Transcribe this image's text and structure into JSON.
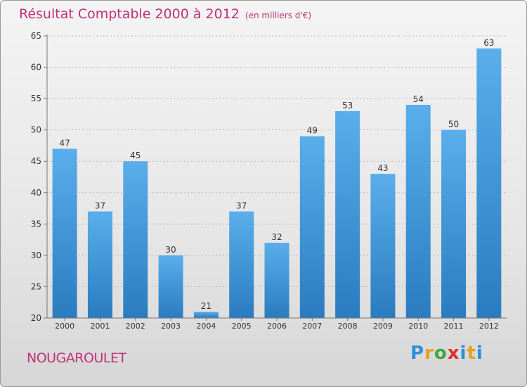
{
  "header": {
    "title": "Résultat Comptable 2000 à 2012",
    "subtitle": "(en milliers d'€)"
  },
  "commune": "NOUGAROULET",
  "logo": [
    "P",
    "r",
    "o",
    "x",
    "i",
    "t",
    "i"
  ],
  "colors": {
    "accent": "#c0307a",
    "bar_light": "#5aaeea",
    "bar_dark": "#2a7cc0"
  },
  "chart_data": {
    "type": "bar",
    "title": "Résultat Comptable 2000 à 2012",
    "xlabel": "",
    "ylabel": "",
    "ylim": [
      20,
      65
    ],
    "yticks": [
      20,
      25,
      30,
      35,
      40,
      45,
      50,
      55,
      60,
      65
    ],
    "categories": [
      "2000",
      "2001",
      "2002",
      "2003",
      "2004",
      "2005",
      "2006",
      "2007",
      "2008",
      "2009",
      "2010",
      "2011",
      "2012"
    ],
    "values": [
      47,
      37,
      45,
      30,
      21,
      37,
      32,
      49,
      53,
      43,
      54,
      50,
      63
    ],
    "grid": true,
    "legend": "none"
  }
}
